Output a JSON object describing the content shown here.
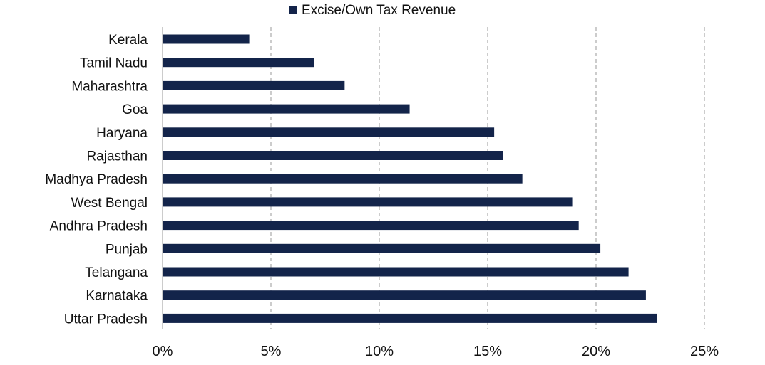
{
  "chart_data": {
    "type": "bar",
    "orientation": "horizontal",
    "categories": [
      "Kerala",
      "Tamil Nadu",
      "Maharashtra",
      "Goa",
      "Haryana",
      "Rajasthan",
      "Madhya Pradesh",
      "West Bengal",
      "Andhra Pradesh",
      "Punjab",
      "Telangana",
      "Karnataka",
      "Uttar Pradesh"
    ],
    "series": [
      {
        "name": "Excise/Own Tax Revenue",
        "values": [
          4.0,
          7.0,
          8.4,
          11.4,
          15.3,
          15.7,
          16.6,
          18.9,
          19.2,
          20.2,
          21.5,
          22.3,
          22.8
        ]
      }
    ],
    "xlim": [
      0,
      25
    ],
    "xticks": [
      0,
      5,
      10,
      15,
      20,
      25
    ],
    "xtick_labels": [
      "0%",
      "5%",
      "10%",
      "15%",
      "20%",
      "25%"
    ],
    "grid": "vertical-dashed",
    "legend_position": "top",
    "bar_color": "#13244a"
  }
}
